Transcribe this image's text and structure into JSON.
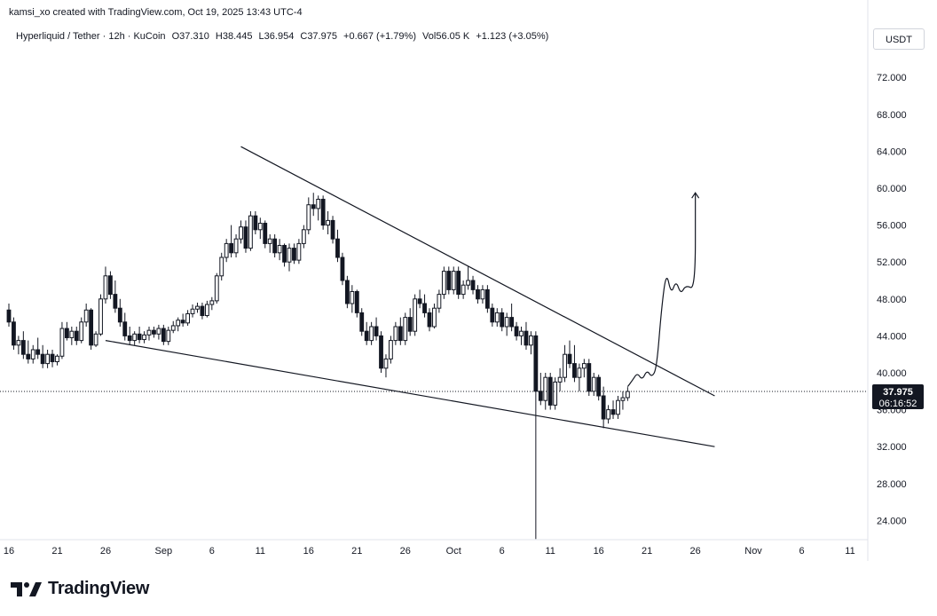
{
  "header": {
    "credit": "kamsi_xo created with TradingView.com, Oct 19, 2025 13:43 UTC-4",
    "symbol_line": "Hyperliquid / Tether · 12h · KuCoin",
    "ohlc": {
      "open": "O37.310",
      "high": "H38.445",
      "low": "L36.954",
      "close": "C37.975",
      "change": "+0.667 (+1.79%)",
      "volume": "Vol56.05 K",
      "volume_change": "+1.123 (+3.05%)"
    },
    "currency": "USDT"
  },
  "brand": {
    "name": "TradingView",
    "logo_icon": "tradingview-logo-icon"
  },
  "colors": {
    "candle": "#131722",
    "grid_line": "#e0e3eb",
    "axis_text": "#131722",
    "price_line": "#131722",
    "label_bg": "#131722",
    "label_text": "#ffffff"
  },
  "chart_data": {
    "type": "candlestick",
    "timeframe": "12h",
    "x_axis_ticks": [
      "16",
      "21",
      "26",
      "Sep",
      "6",
      "11",
      "16",
      "21",
      "26",
      "Oct",
      "6",
      "11",
      "16",
      "21",
      "26",
      "Nov",
      "6",
      "11"
    ],
    "x_axis_tick_dates": [
      "2025-08-16",
      "2025-08-21",
      "2025-08-26",
      "2025-09-01",
      "2025-09-06",
      "2025-09-11",
      "2025-09-16",
      "2025-09-21",
      "2025-09-26",
      "2025-10-01",
      "2025-10-06",
      "2025-10-11",
      "2025-10-16",
      "2025-10-21",
      "2025-10-26",
      "2025-11-01",
      "2025-11-06",
      "2025-11-11"
    ],
    "y_axis_ticks": [
      "24.000",
      "28.000",
      "32.000",
      "36.000",
      "40.000",
      "44.000",
      "48.000",
      "52.000",
      "56.000",
      "60.000",
      "64.000",
      "68.000",
      "72.000"
    ],
    "ylim": [
      21.5,
      75
    ],
    "current_price": {
      "price": 37.975,
      "label": "37.975",
      "countdown": "06:16:52"
    },
    "candles": [
      {
        "t": "2025-08-16",
        "o": 46.8,
        "h": 47.5,
        "l": 45.0,
        "c": 45.5
      },
      {
        "t": "2025-08-16T12",
        "o": 45.5,
        "h": 46.0,
        "l": 42.5,
        "c": 43.0
      },
      {
        "t": "2025-08-17",
        "o": 43.0,
        "h": 44.0,
        "l": 42.0,
        "c": 43.5
      },
      {
        "t": "2025-08-17T12",
        "o": 43.5,
        "h": 44.5,
        "l": 41.5,
        "c": 42.0
      },
      {
        "t": "2025-08-18",
        "o": 42.0,
        "h": 43.5,
        "l": 41.0,
        "c": 41.5
      },
      {
        "t": "2025-08-18T12",
        "o": 41.5,
        "h": 43.0,
        "l": 41.0,
        "c": 42.5
      },
      {
        "t": "2025-08-19",
        "o": 42.5,
        "h": 43.8,
        "l": 41.5,
        "c": 42.0
      },
      {
        "t": "2025-08-19T12",
        "o": 42.0,
        "h": 43.0,
        "l": 40.5,
        "c": 41.0
      },
      {
        "t": "2025-08-20",
        "o": 41.0,
        "h": 42.5,
        "l": 40.5,
        "c": 42.0
      },
      {
        "t": "2025-08-20T12",
        "o": 42.0,
        "h": 42.5,
        "l": 40.6,
        "c": 41.2
      },
      {
        "t": "2025-08-21",
        "o": 41.2,
        "h": 42.0,
        "l": 40.8,
        "c": 41.8
      },
      {
        "t": "2025-08-21T12",
        "o": 41.8,
        "h": 45.5,
        "l": 41.5,
        "c": 44.8
      },
      {
        "t": "2025-08-22",
        "o": 44.8,
        "h": 45.5,
        "l": 43.5,
        "c": 43.8
      },
      {
        "t": "2025-08-22T12",
        "o": 43.8,
        "h": 45.0,
        "l": 43.0,
        "c": 44.5
      },
      {
        "t": "2025-08-23",
        "o": 44.5,
        "h": 45.0,
        "l": 43.0,
        "c": 43.5
      },
      {
        "t": "2025-08-23T12",
        "o": 43.5,
        "h": 46.0,
        "l": 43.2,
        "c": 45.5
      },
      {
        "t": "2025-08-24",
        "o": 45.5,
        "h": 47.5,
        "l": 45.0,
        "c": 46.8
      },
      {
        "t": "2025-08-24T12",
        "o": 46.8,
        "h": 47.0,
        "l": 42.5,
        "c": 43.0
      },
      {
        "t": "2025-08-25",
        "o": 43.0,
        "h": 44.5,
        "l": 42.8,
        "c": 44.2
      },
      {
        "t": "2025-08-25T12",
        "o": 44.2,
        "h": 48.5,
        "l": 44.0,
        "c": 48.0
      },
      {
        "t": "2025-08-26",
        "o": 48.0,
        "h": 51.5,
        "l": 47.5,
        "c": 50.5
      },
      {
        "t": "2025-08-26T12",
        "o": 50.5,
        "h": 51.0,
        "l": 48.0,
        "c": 48.5
      },
      {
        "t": "2025-08-27",
        "o": 48.5,
        "h": 50.0,
        "l": 46.5,
        "c": 47.0
      },
      {
        "t": "2025-08-27T12",
        "o": 47.0,
        "h": 48.0,
        "l": 45.0,
        "c": 45.5
      },
      {
        "t": "2025-08-28",
        "o": 45.5,
        "h": 46.5,
        "l": 43.5,
        "c": 44.0
      },
      {
        "t": "2025-08-28T12",
        "o": 44.0,
        "h": 45.0,
        "l": 43.0,
        "c": 43.5
      },
      {
        "t": "2025-08-29",
        "o": 43.5,
        "h": 44.5,
        "l": 43.0,
        "c": 44.2
      },
      {
        "t": "2025-08-29T12",
        "o": 44.2,
        "h": 45.0,
        "l": 43.2,
        "c": 43.6
      },
      {
        "t": "2025-08-30",
        "o": 43.6,
        "h": 44.5,
        "l": 43.2,
        "c": 44.1
      },
      {
        "t": "2025-08-30T12",
        "o": 44.1,
        "h": 45.0,
        "l": 43.5,
        "c": 44.6
      },
      {
        "t": "2025-08-31",
        "o": 44.6,
        "h": 45.0,
        "l": 43.8,
        "c": 44.2
      },
      {
        "t": "2025-08-31T12",
        "o": 44.2,
        "h": 45.2,
        "l": 43.6,
        "c": 44.8
      },
      {
        "t": "2025-09-01",
        "o": 44.8,
        "h": 45.2,
        "l": 43.0,
        "c": 43.4
      },
      {
        "t": "2025-09-01T12",
        "o": 43.4,
        "h": 45.0,
        "l": 43.0,
        "c": 44.6
      },
      {
        "t": "2025-09-02",
        "o": 44.6,
        "h": 45.6,
        "l": 44.3,
        "c": 45.1
      },
      {
        "t": "2025-09-02T12",
        "o": 45.1,
        "h": 46.0,
        "l": 44.5,
        "c": 45.7
      },
      {
        "t": "2025-09-03",
        "o": 45.7,
        "h": 46.4,
        "l": 45.0,
        "c": 45.4
      },
      {
        "t": "2025-09-03T12",
        "o": 45.4,
        "h": 46.8,
        "l": 45.1,
        "c": 46.4
      },
      {
        "t": "2025-09-04",
        "o": 46.4,
        "h": 47.4,
        "l": 46.0,
        "c": 46.9
      },
      {
        "t": "2025-09-04T12",
        "o": 46.9,
        "h": 47.6,
        "l": 46.5,
        "c": 47.2
      },
      {
        "t": "2025-09-05",
        "o": 47.2,
        "h": 47.6,
        "l": 45.8,
        "c": 46.2
      },
      {
        "t": "2025-09-05T12",
        "o": 46.2,
        "h": 47.8,
        "l": 46.0,
        "c": 47.4
      },
      {
        "t": "2025-09-06",
        "o": 47.4,
        "h": 48.2,
        "l": 46.8,
        "c": 47.8
      },
      {
        "t": "2025-09-06T12",
        "o": 47.8,
        "h": 50.8,
        "l": 47.5,
        "c": 50.5
      },
      {
        "t": "2025-09-07",
        "o": 50.5,
        "h": 53.0,
        "l": 50.0,
        "c": 52.5
      },
      {
        "t": "2025-09-07T12",
        "o": 52.5,
        "h": 54.5,
        "l": 52.0,
        "c": 54.0
      },
      {
        "t": "2025-09-08",
        "o": 54.0,
        "h": 56.0,
        "l": 52.5,
        "c": 53.0
      },
      {
        "t": "2025-09-08T12",
        "o": 53.0,
        "h": 55.0,
        "l": 52.5,
        "c": 54.5
      },
      {
        "t": "2025-09-09",
        "o": 54.5,
        "h": 56.5,
        "l": 54.0,
        "c": 55.8
      },
      {
        "t": "2025-09-09T12",
        "o": 55.8,
        "h": 56.5,
        "l": 53.0,
        "c": 53.5
      },
      {
        "t": "2025-09-10",
        "o": 53.5,
        "h": 57.5,
        "l": 53.2,
        "c": 57.0
      },
      {
        "t": "2025-09-10T12",
        "o": 57.0,
        "h": 57.5,
        "l": 55.0,
        "c": 55.5
      },
      {
        "t": "2025-09-11",
        "o": 55.5,
        "h": 56.8,
        "l": 54.5,
        "c": 56.2
      },
      {
        "t": "2025-09-11T12",
        "o": 56.2,
        "h": 56.5,
        "l": 53.5,
        "c": 54.0
      },
      {
        "t": "2025-09-12",
        "o": 54.0,
        "h": 55.0,
        "l": 53.0,
        "c": 54.5
      },
      {
        "t": "2025-09-12T12",
        "o": 54.5,
        "h": 55.0,
        "l": 52.5,
        "c": 53.0
      },
      {
        "t": "2025-09-13",
        "o": 53.0,
        "h": 54.5,
        "l": 52.2,
        "c": 53.8
      },
      {
        "t": "2025-09-13T12",
        "o": 53.8,
        "h": 54.0,
        "l": 51.5,
        "c": 52.0
      },
      {
        "t": "2025-09-14",
        "o": 52.0,
        "h": 54.0,
        "l": 51.0,
        "c": 53.5
      },
      {
        "t": "2025-09-14T12",
        "o": 53.5,
        "h": 54.0,
        "l": 51.8,
        "c": 52.2
      },
      {
        "t": "2025-09-15",
        "o": 52.2,
        "h": 54.5,
        "l": 51.8,
        "c": 54.0
      },
      {
        "t": "2025-09-15T12",
        "o": 54.0,
        "h": 56.0,
        "l": 53.5,
        "c": 55.5
      },
      {
        "t": "2025-09-16",
        "o": 55.5,
        "h": 59.0,
        "l": 55.0,
        "c": 58.2
      },
      {
        "t": "2025-09-16T12",
        "o": 58.2,
        "h": 59.5,
        "l": 57.0,
        "c": 57.8
      },
      {
        "t": "2025-09-17",
        "o": 57.8,
        "h": 59.2,
        "l": 56.5,
        "c": 58.8
      },
      {
        "t": "2025-09-17T12",
        "o": 58.8,
        "h": 59.2,
        "l": 55.5,
        "c": 56.0
      },
      {
        "t": "2025-09-18",
        "o": 56.0,
        "h": 57.5,
        "l": 55.0,
        "c": 56.5
      },
      {
        "t": "2025-09-18T12",
        "o": 56.5,
        "h": 57.0,
        "l": 54.0,
        "c": 54.5
      },
      {
        "t": "2025-09-19",
        "o": 54.5,
        "h": 55.5,
        "l": 52.0,
        "c": 52.5
      },
      {
        "t": "2025-09-19T12",
        "o": 52.5,
        "h": 53.0,
        "l": 49.5,
        "c": 50.0
      },
      {
        "t": "2025-09-20",
        "o": 50.0,
        "h": 50.5,
        "l": 47.0,
        "c": 47.5
      },
      {
        "t": "2025-09-20T12",
        "o": 47.5,
        "h": 49.5,
        "l": 46.5,
        "c": 48.8
      },
      {
        "t": "2025-09-21",
        "o": 48.8,
        "h": 49.0,
        "l": 46.0,
        "c": 46.5
      },
      {
        "t": "2025-09-21T12",
        "o": 46.5,
        "h": 47.0,
        "l": 44.0,
        "c": 44.5
      },
      {
        "t": "2025-09-22",
        "o": 44.5,
        "h": 45.5,
        "l": 43.0,
        "c": 43.5
      },
      {
        "t": "2025-09-22T12",
        "o": 43.5,
        "h": 45.5,
        "l": 43.0,
        "c": 45.0
      },
      {
        "t": "2025-09-23",
        "o": 45.0,
        "h": 46.0,
        "l": 43.5,
        "c": 44.0
      },
      {
        "t": "2025-09-23T12",
        "o": 44.0,
        "h": 44.5,
        "l": 40.0,
        "c": 40.5
      },
      {
        "t": "2025-09-24",
        "o": 40.5,
        "h": 42.0,
        "l": 39.5,
        "c": 41.5
      },
      {
        "t": "2025-09-24T12",
        "o": 41.5,
        "h": 44.0,
        "l": 41.0,
        "c": 43.5
      },
      {
        "t": "2025-09-25",
        "o": 43.5,
        "h": 45.5,
        "l": 43.0,
        "c": 45.0
      },
      {
        "t": "2025-09-25T12",
        "o": 45.0,
        "h": 46.0,
        "l": 43.0,
        "c": 43.5
      },
      {
        "t": "2025-09-26",
        "o": 43.5,
        "h": 46.5,
        "l": 43.0,
        "c": 46.0
      },
      {
        "t": "2025-09-26T12",
        "o": 46.0,
        "h": 47.0,
        "l": 44.0,
        "c": 44.5
      },
      {
        "t": "2025-09-27",
        "o": 44.5,
        "h": 48.5,
        "l": 44.0,
        "c": 48.0
      },
      {
        "t": "2025-09-27T12",
        "o": 48.0,
        "h": 49.0,
        "l": 47.0,
        "c": 47.5
      },
      {
        "t": "2025-09-28",
        "o": 47.5,
        "h": 48.5,
        "l": 46.0,
        "c": 46.5
      },
      {
        "t": "2025-09-28T12",
        "o": 46.5,
        "h": 47.0,
        "l": 44.5,
        "c": 45.0
      },
      {
        "t": "2025-09-29",
        "o": 45.0,
        "h": 47.5,
        "l": 44.8,
        "c": 47.0
      },
      {
        "t": "2025-09-29T12",
        "o": 47.0,
        "h": 49.0,
        "l": 46.5,
        "c": 48.5
      },
      {
        "t": "2025-09-30",
        "o": 48.5,
        "h": 51.5,
        "l": 48.0,
        "c": 51.0
      },
      {
        "t": "2025-09-30T12",
        "o": 51.0,
        "h": 51.5,
        "l": 48.5,
        "c": 49.0
      },
      {
        "t": "2025-10-01",
        "o": 49.0,
        "h": 51.5,
        "l": 48.5,
        "c": 51.0
      },
      {
        "t": "2025-10-01T12",
        "o": 51.0,
        "h": 51.5,
        "l": 48.0,
        "c": 48.5
      },
      {
        "t": "2025-10-02",
        "o": 48.5,
        "h": 50.0,
        "l": 48.0,
        "c": 49.5
      },
      {
        "t": "2025-10-02T12",
        "o": 49.5,
        "h": 51.5,
        "l": 49.0,
        "c": 50.0
      },
      {
        "t": "2025-10-03",
        "o": 50.0,
        "h": 50.5,
        "l": 48.5,
        "c": 49.0
      },
      {
        "t": "2025-10-03T12",
        "o": 49.0,
        "h": 49.5,
        "l": 47.5,
        "c": 48.0
      },
      {
        "t": "2025-10-04",
        "o": 48.0,
        "h": 49.5,
        "l": 47.5,
        "c": 49.0
      },
      {
        "t": "2025-10-04T12",
        "o": 49.0,
        "h": 49.5,
        "l": 46.5,
        "c": 47.0
      },
      {
        "t": "2025-10-05",
        "o": 47.0,
        "h": 47.5,
        "l": 45.0,
        "c": 45.5
      },
      {
        "t": "2025-10-05T12",
        "o": 45.5,
        "h": 47.0,
        "l": 45.0,
        "c": 46.5
      },
      {
        "t": "2025-10-06",
        "o": 46.5,
        "h": 47.0,
        "l": 44.5,
        "c": 45.0
      },
      {
        "t": "2025-10-06T12",
        "o": 45.0,
        "h": 46.5,
        "l": 44.0,
        "c": 46.0
      },
      {
        "t": "2025-10-07",
        "o": 46.0,
        "h": 47.5,
        "l": 44.5,
        "c": 45.0
      },
      {
        "t": "2025-10-07T12",
        "o": 45.0,
        "h": 45.5,
        "l": 43.5,
        "c": 44.0
      },
      {
        "t": "2025-10-08",
        "o": 44.0,
        "h": 45.0,
        "l": 43.0,
        "c": 44.5
      },
      {
        "t": "2025-10-08T12",
        "o": 44.5,
        "h": 45.5,
        "l": 42.5,
        "c": 43.0
      },
      {
        "t": "2025-10-09",
        "o": 43.0,
        "h": 44.5,
        "l": 42.0,
        "c": 44.0
      },
      {
        "t": "2025-10-09T12",
        "o": 44.0,
        "h": 44.5,
        "l": 22.0,
        "c": 38.0
      },
      {
        "t": "2025-10-10",
        "o": 38.0,
        "h": 40.0,
        "l": 36.5,
        "c": 37.0
      },
      {
        "t": "2025-10-10T12",
        "o": 37.0,
        "h": 40.0,
        "l": 36.0,
        "c": 39.5
      },
      {
        "t": "2025-10-11",
        "o": 39.5,
        "h": 40.0,
        "l": 36.0,
        "c": 36.5
      },
      {
        "t": "2025-10-11T12",
        "o": 36.5,
        "h": 39.5,
        "l": 36.0,
        "c": 39.0
      },
      {
        "t": "2025-10-12",
        "o": 39.0,
        "h": 40.5,
        "l": 38.0,
        "c": 39.5
      },
      {
        "t": "2025-10-12T12",
        "o": 39.5,
        "h": 43.0,
        "l": 39.0,
        "c": 42.0
      },
      {
        "t": "2025-10-13",
        "o": 42.0,
        "h": 43.5,
        "l": 40.5,
        "c": 41.0
      },
      {
        "t": "2025-10-13T12",
        "o": 41.0,
        "h": 43.0,
        "l": 39.0,
        "c": 39.5
      },
      {
        "t": "2025-10-14",
        "o": 39.5,
        "h": 41.0,
        "l": 38.0,
        "c": 40.5
      },
      {
        "t": "2025-10-14T12",
        "o": 40.5,
        "h": 41.5,
        "l": 39.5,
        "c": 41.0
      },
      {
        "t": "2025-10-15",
        "o": 41.0,
        "h": 41.5,
        "l": 37.5,
        "c": 38.0
      },
      {
        "t": "2025-10-15T12",
        "o": 38.0,
        "h": 40.0,
        "l": 37.5,
        "c": 39.5
      },
      {
        "t": "2025-10-16",
        "o": 39.5,
        "h": 39.8,
        "l": 37.0,
        "c": 37.5
      },
      {
        "t": "2025-10-16T12",
        "o": 37.5,
        "h": 38.5,
        "l": 34.0,
        "c": 35.0
      },
      {
        "t": "2025-10-17",
        "o": 35.0,
        "h": 36.5,
        "l": 34.5,
        "c": 36.0
      },
      {
        "t": "2025-10-17T12",
        "o": 36.0,
        "h": 37.0,
        "l": 35.0,
        "c": 35.5
      },
      {
        "t": "2025-10-18",
        "o": 35.5,
        "h": 37.5,
        "l": 35.0,
        "c": 37.0
      },
      {
        "t": "2025-10-18T12",
        "o": 37.0,
        "h": 38.0,
        "l": 36.0,
        "c": 37.3
      },
      {
        "t": "2025-10-19",
        "o": 37.31,
        "h": 38.445,
        "l": 36.954,
        "c": 37.975
      }
    ],
    "drawings": {
      "upper_trendline": {
        "start": {
          "t": "2025-09-09",
          "p": 64.5
        },
        "end": {
          "t": "2025-10-28",
          "p": 37.5
        }
      },
      "lower_trendline": {
        "start": {
          "t": "2025-08-26",
          "p": 43.5
        },
        "end": {
          "t": "2025-10-28",
          "p": 32.0
        }
      },
      "projected_path": [
        {
          "t": "2025-10-19",
          "p": 38.5
        },
        {
          "t": "2025-10-19T12",
          "p": 39.2
        },
        {
          "t": "2025-10-20",
          "p": 40.0
        },
        {
          "t": "2025-10-20T12",
          "p": 39.2
        },
        {
          "t": "2025-10-21",
          "p": 40.3
        },
        {
          "t": "2025-10-21T12",
          "p": 39.5
        },
        {
          "t": "2025-10-22",
          "p": 40.5
        },
        {
          "t": "2025-10-22T12",
          "p": 47.0
        },
        {
          "t": "2025-10-23",
          "p": 51.0
        },
        {
          "t": "2025-10-23T12",
          "p": 48.5
        },
        {
          "t": "2025-10-24",
          "p": 50.0
        },
        {
          "t": "2025-10-24T12",
          "p": 48.5
        },
        {
          "t": "2025-10-25",
          "p": 49.5
        },
        {
          "t": "2025-10-26",
          "p": 49.0
        },
        {
          "t": "2025-10-26",
          "p": 59.5
        }
      ]
    },
    "grid": false,
    "legend": "top-left"
  }
}
